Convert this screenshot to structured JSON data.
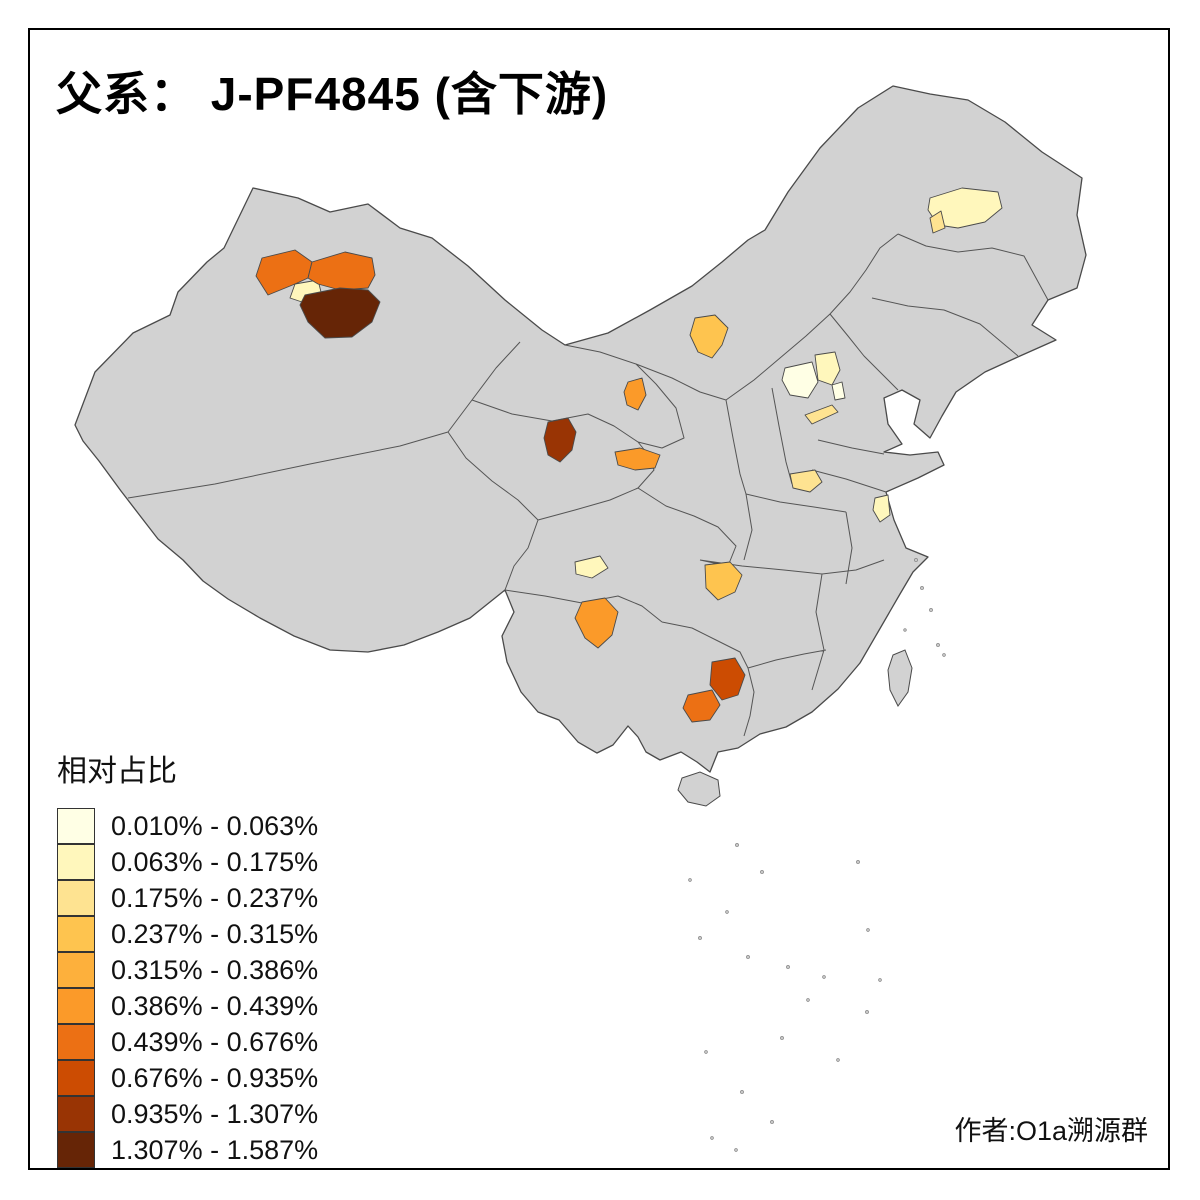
{
  "title": "父系： J-PF4845 (含下游)",
  "author": "作者:O1a溯源群",
  "legend": {
    "title": "相对占比",
    "classes": [
      {
        "label": "0.010% - 0.063%",
        "color": "#FFFFE5"
      },
      {
        "label": "0.063% - 0.175%",
        "color": "#FFF7BC"
      },
      {
        "label": "0.175% - 0.237%",
        "color": "#FEE391"
      },
      {
        "label": "0.237% - 0.315%",
        "color": "#FEC44F"
      },
      {
        "label": "0.315% - 0.386%",
        "color": "#FDB03C"
      },
      {
        "label": "0.386% - 0.439%",
        "color": "#FB9A29"
      },
      {
        "label": "0.439% - 0.676%",
        "color": "#EC7014"
      },
      {
        "label": "0.676% - 0.935%",
        "color": "#CC4C02"
      },
      {
        "label": "0.935% - 1.307%",
        "color": "#993404"
      },
      {
        "label": "1.307% - 1.587%",
        "color": "#662506"
      }
    ]
  },
  "map": {
    "land_color": "#D2D2D2",
    "border_color": "#4A4A4A",
    "background": "#FFFFFF",
    "regions": [
      {
        "name": "xinjiang-ili-west",
        "class_index": 7
      },
      {
        "name": "xinjiang-ili-cream",
        "class_index": 2
      },
      {
        "name": "xinjiang-north",
        "class_index": 7
      },
      {
        "name": "xinjiang-south-dark",
        "class_index": 10
      },
      {
        "name": "heilongjiang-patch",
        "class_index": 2
      },
      {
        "name": "heilongjiang-sliver",
        "class_index": 3
      },
      {
        "name": "inner-mongolia-patch",
        "class_index": 4
      },
      {
        "name": "gansu-patch",
        "class_index": 6
      },
      {
        "name": "qinghai-patch",
        "class_index": 9
      },
      {
        "name": "lanzhou-patch",
        "class_index": 6
      },
      {
        "name": "hebei-patch",
        "class_index": 1
      },
      {
        "name": "beijing-patch",
        "class_index": 2
      },
      {
        "name": "tianjin-patch",
        "class_index": 1
      },
      {
        "name": "shandong-patch",
        "class_index": 3
      },
      {
        "name": "henan-patch",
        "class_index": 3
      },
      {
        "name": "jiangsu-patch",
        "class_index": 2
      },
      {
        "name": "sichuan-patch",
        "class_index": 2
      },
      {
        "name": "sichuan-south-patch",
        "class_index": 6
      },
      {
        "name": "hubei-patch",
        "class_index": 4
      },
      {
        "name": "hunan-guangxi-dark-patch",
        "class_index": 8
      },
      {
        "name": "guangxi-patch",
        "class_index": 7
      }
    ]
  }
}
